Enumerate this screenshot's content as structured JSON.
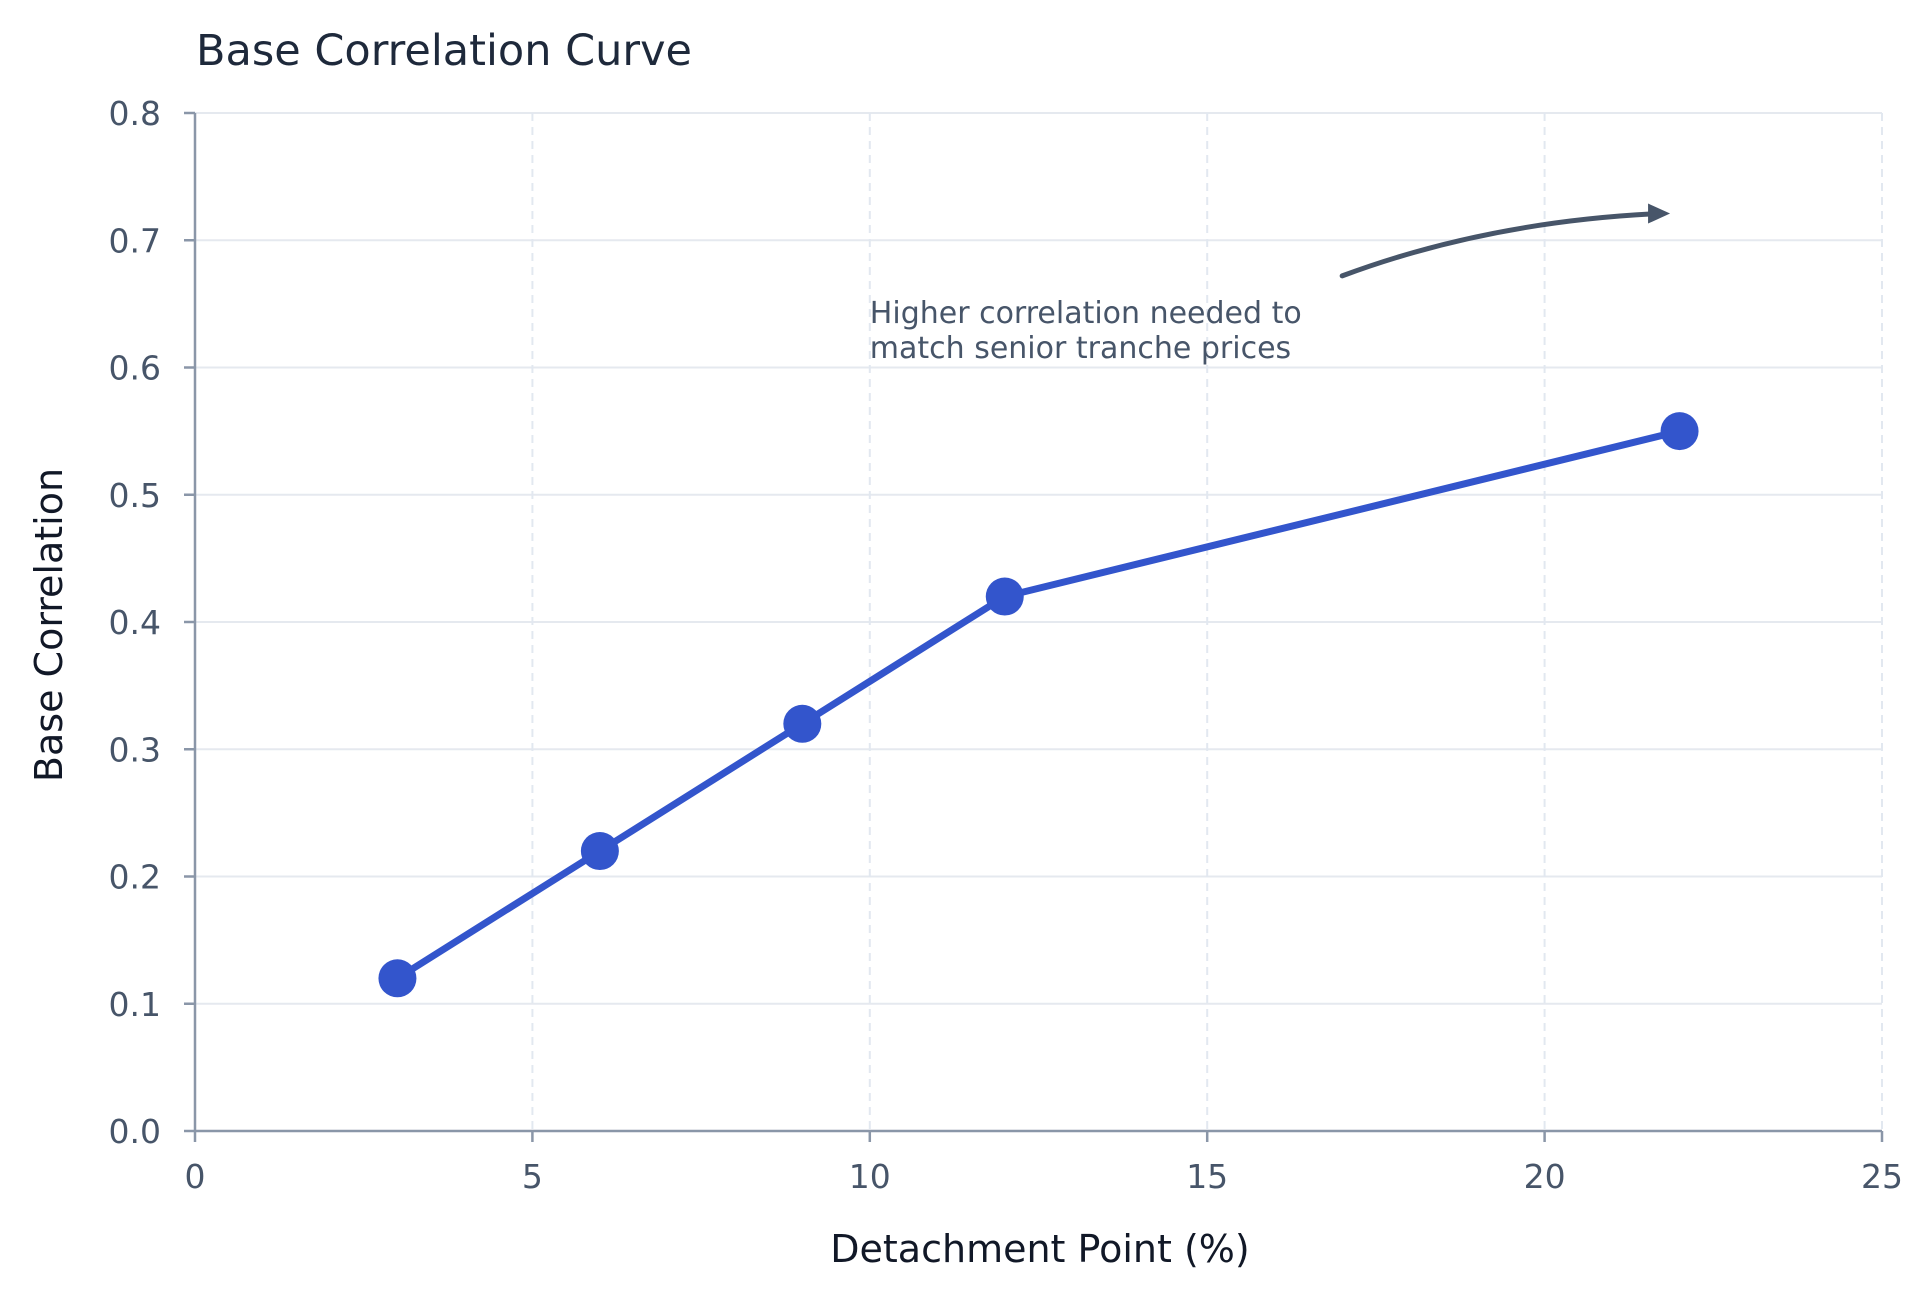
{
  "chart_data": {
    "type": "line",
    "title": "Base Correlation Curve",
    "xlabel": "Detachment Point (%)",
    "ylabel": "Base Correlation",
    "xlim": [
      0,
      25
    ],
    "ylim": [
      0,
      0.8
    ],
    "xticks": [
      0,
      5,
      10,
      15,
      20,
      25
    ],
    "xtick_labels": [
      "0",
      "5",
      "10",
      "15",
      "20",
      "25"
    ],
    "yticks": [
      0.0,
      0.1,
      0.2,
      0.3,
      0.4,
      0.5,
      0.6,
      0.7,
      0.8
    ],
    "ytick_labels": [
      "0.0",
      "0.1",
      "0.2",
      "0.3",
      "0.4",
      "0.5",
      "0.6",
      "0.7",
      "0.8"
    ],
    "grid": true,
    "series": [
      {
        "color": "#3355cc",
        "x": [
          3,
          6,
          9,
          12,
          22
        ],
        "y": [
          0.12,
          0.22,
          0.32,
          0.42,
          0.55
        ]
      }
    ],
    "annotations": [
      {
        "lines": [
          "Higher correlation needed to",
          "match senior tranche prices"
        ],
        "text_at": [
          10,
          0.635
        ],
        "arrow_from": [
          17,
          0.672
        ],
        "arrow_to": [
          21.8,
          0.721
        ]
      }
    ],
    "colors": {
      "line": "#3355cc",
      "grid_h": "#e5e9ef",
      "grid_v": "#e2e8f0",
      "axis": "#8a96a8",
      "annotation_arrow": "#475569"
    }
  }
}
